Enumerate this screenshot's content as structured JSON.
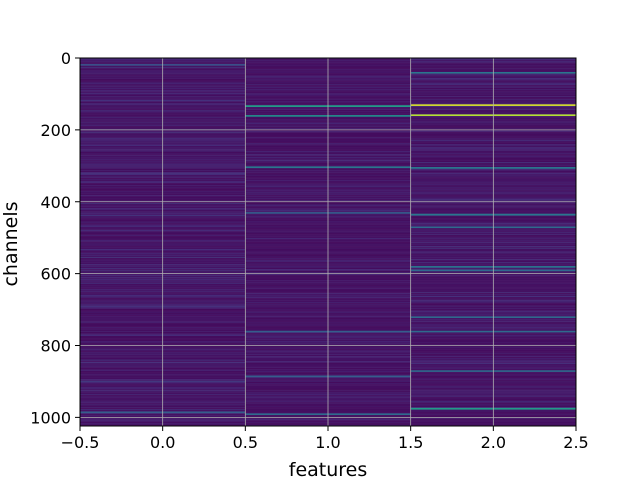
{
  "chart_data": {
    "type": "heatmap",
    "colormap": "viridis",
    "xlabel": "features",
    "ylabel": "channels",
    "xlim": [
      -0.5,
      2.5
    ],
    "ylim": [
      1024,
      0
    ],
    "y_inverted": true,
    "x_ticks": [
      -0.5,
      0.0,
      0.5,
      1.0,
      1.5,
      2.0,
      2.5
    ],
    "x_tick_labels": [
      "−0.5",
      "0.0",
      "0.5",
      "1.0",
      "1.5",
      "2.0",
      "2.5"
    ],
    "y_ticks": [
      0,
      200,
      400,
      600,
      800,
      1000
    ],
    "y_tick_labels": [
      "0",
      "200",
      "400",
      "600",
      "800",
      "1000"
    ],
    "grid": true,
    "n_features": 3,
    "n_channels": 1024,
    "base_value": 0.03,
    "column_noise": [
      0.08,
      0.06,
      0.07
    ],
    "bright_bands": [
      {
        "feature": 0,
        "channel": 18,
        "value": 0.25
      },
      {
        "feature": 0,
        "channel": 985,
        "value": 0.3
      },
      {
        "feature": 1,
        "channel": 133,
        "value": 0.55
      },
      {
        "feature": 1,
        "channel": 160,
        "value": 0.5
      },
      {
        "feature": 1,
        "channel": 303,
        "value": 0.4
      },
      {
        "feature": 1,
        "channel": 430,
        "value": 0.3
      },
      {
        "feature": 1,
        "channel": 760,
        "value": 0.3
      },
      {
        "feature": 1,
        "channel": 885,
        "value": 0.3
      },
      {
        "feature": 1,
        "channel": 990,
        "value": 0.35
      },
      {
        "feature": 2,
        "channel": 40,
        "value": 0.4
      },
      {
        "feature": 2,
        "channel": 130,
        "value": 0.95
      },
      {
        "feature": 2,
        "channel": 158,
        "value": 0.9
      },
      {
        "feature": 2,
        "channel": 305,
        "value": 0.4
      },
      {
        "feature": 2,
        "channel": 435,
        "value": 0.4
      },
      {
        "feature": 2,
        "channel": 470,
        "value": 0.35
      },
      {
        "feature": 2,
        "channel": 580,
        "value": 0.4
      },
      {
        "feature": 2,
        "channel": 590,
        "value": 0.35
      },
      {
        "feature": 2,
        "channel": 720,
        "value": 0.35
      },
      {
        "feature": 2,
        "channel": 760,
        "value": 0.35
      },
      {
        "feature": 2,
        "channel": 870,
        "value": 0.35
      },
      {
        "feature": 2,
        "channel": 975,
        "value": 0.55
      }
    ]
  }
}
